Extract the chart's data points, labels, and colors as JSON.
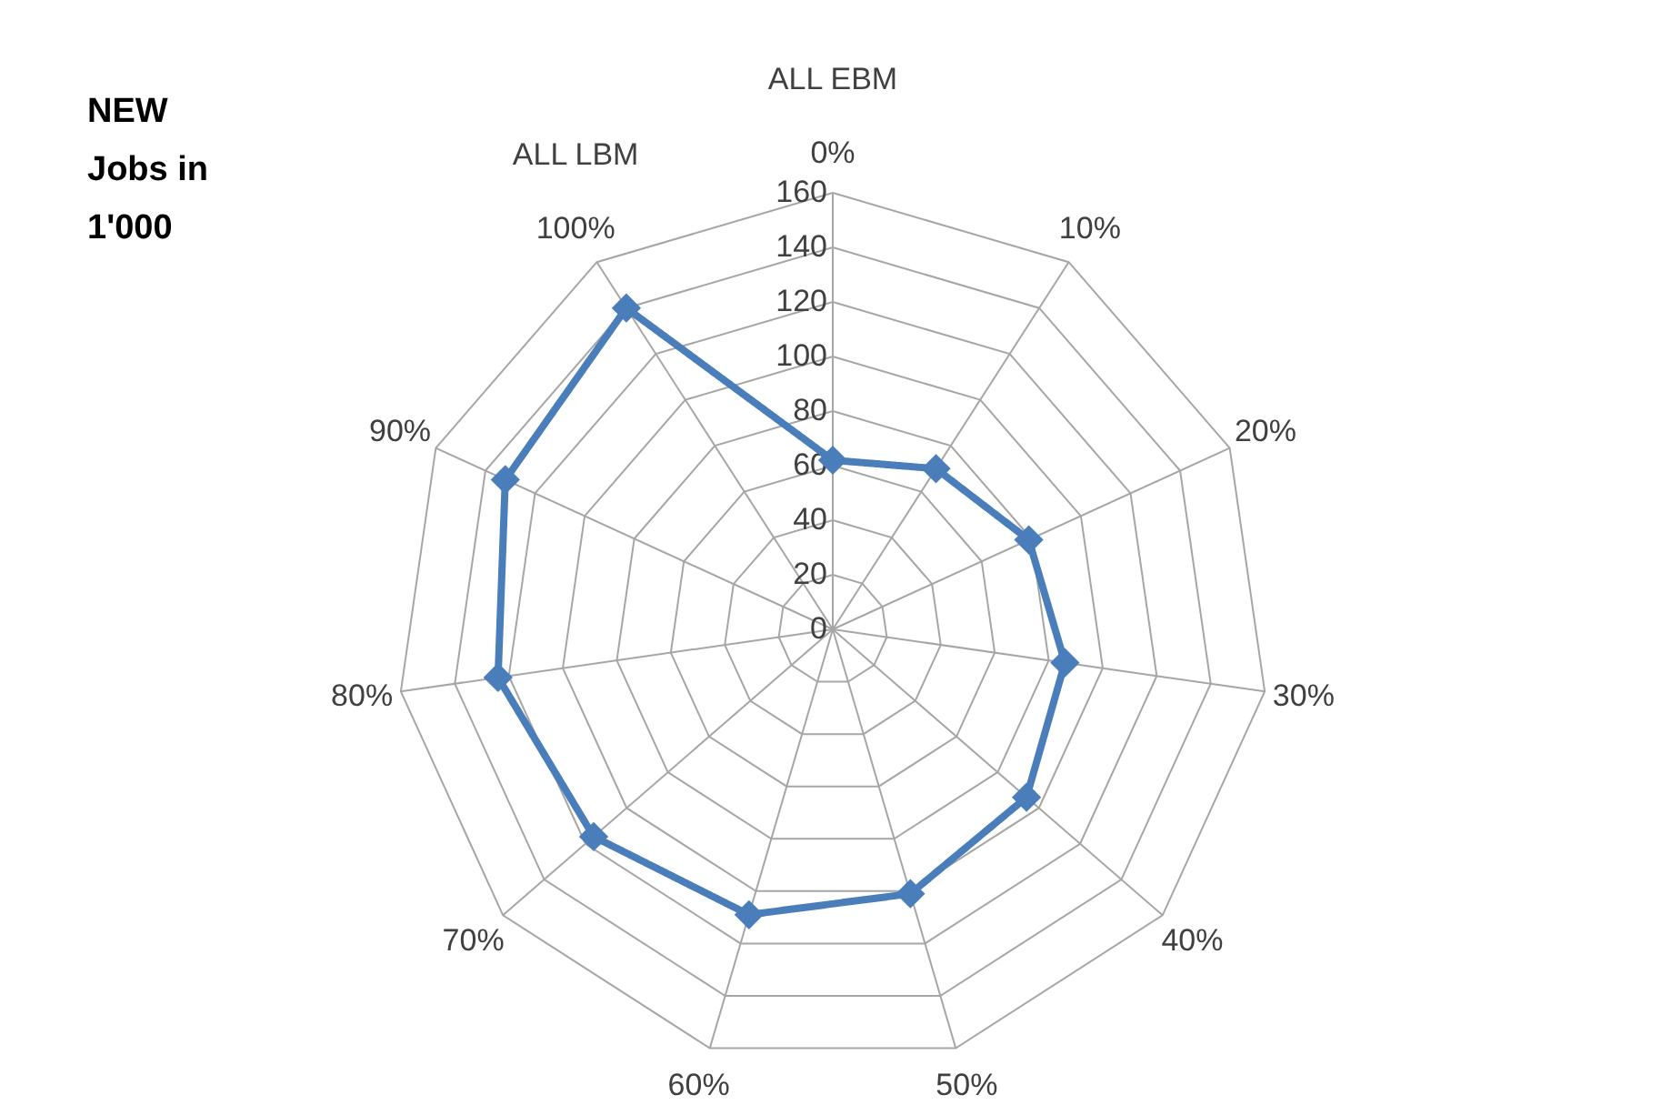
{
  "chart_data": {
    "type": "radar",
    "title": "NEW Jobs in 1'000",
    "annotations": [
      "ALL EBM",
      "ALL LBM"
    ],
    "categories": [
      "0%",
      "10%",
      "20%",
      "30%",
      "40%",
      "50%",
      "60%",
      "70%",
      "80%",
      "90%",
      "100%"
    ],
    "series": [
      {
        "color": "#4a7ebb",
        "values": [
          62,
          70,
          79,
          86,
          94,
          101,
          109,
          116,
          124,
          132,
          140
        ]
      }
    ],
    "ylim": [
      0,
      160
    ],
    "yticks": [
      0,
      20,
      40,
      60,
      80,
      100,
      120,
      140,
      160
    ],
    "grid": true,
    "marker": "diamond",
    "line_style": "solid"
  }
}
